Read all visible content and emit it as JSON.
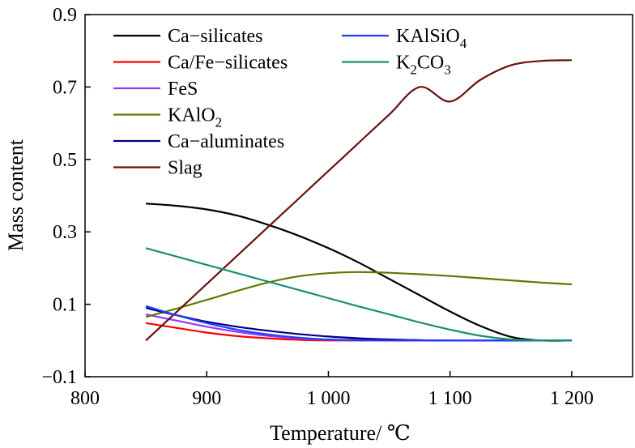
{
  "chart_data": {
    "type": "line",
    "xlabel": "Temperature/ ℃",
    "ylabel": "Mass content",
    "xlim": [
      800,
      1250
    ],
    "ylim": [
      -0.1,
      0.9
    ],
    "x_ticks": [
      {
        "value": 800,
        "label": "800"
      },
      {
        "value": 900,
        "label": "900"
      },
      {
        "value": 1000,
        "label": "1 000"
      },
      {
        "value": 1100,
        "label": "1 100"
      },
      {
        "value": 1200,
        "label": "1 200"
      }
    ],
    "y_ticks": [
      {
        "value": -0.1,
        "label": "−0.1"
      },
      {
        "value": 0.1,
        "label": "0.1"
      },
      {
        "value": 0.3,
        "label": "0.3"
      },
      {
        "value": 0.5,
        "label": "0.5"
      },
      {
        "value": 0.7,
        "label": "0.7"
      },
      {
        "value": 0.9,
        "label": "0.9"
      }
    ],
    "grid": false,
    "legend_position": "top-left, two columns",
    "series": [
      {
        "name": "Ca−silicates",
        "name_sub": "",
        "color": "#000000",
        "x": [
          850,
          875,
          900,
          925,
          950,
          975,
          1000,
          1025,
          1050,
          1075,
          1100,
          1125,
          1150,
          1175,
          1200
        ],
        "y": [
          0.378,
          0.372,
          0.362,
          0.345,
          0.32,
          0.29,
          0.255,
          0.215,
          0.17,
          0.125,
          0.08,
          0.04,
          0.01,
          0.0,
          0.0
        ]
      },
      {
        "name": "Ca/Fe−silicates",
        "name_sub": "",
        "color": "#ff0000",
        "x": [
          850,
          875,
          900,
          925,
          950,
          975,
          1000,
          1050,
          1100,
          1150,
          1200
        ],
        "y": [
          0.048,
          0.035,
          0.022,
          0.012,
          0.006,
          0.002,
          0.0,
          0.0,
          0.0,
          0.0,
          0.0
        ]
      },
      {
        "name": "FeS",
        "name_sub": "",
        "color": "#9933ff",
        "x": [
          850,
          875,
          900,
          925,
          950,
          975,
          1000,
          1050,
          1100,
          1150,
          1200
        ],
        "y": [
          0.072,
          0.055,
          0.038,
          0.024,
          0.013,
          0.006,
          0.002,
          0.0,
          0.0,
          0.0,
          0.0
        ]
      },
      {
        "name": "KAlO",
        "name_sub": "2",
        "color": "#5c7a00",
        "x": [
          850,
          875,
          900,
          925,
          950,
          975,
          1000,
          1025,
          1050,
          1075,
          1100,
          1125,
          1150,
          1175,
          1200
        ],
        "y": [
          0.065,
          0.088,
          0.112,
          0.137,
          0.16,
          0.177,
          0.186,
          0.189,
          0.187,
          0.183,
          0.178,
          0.172,
          0.166,
          0.16,
          0.155
        ]
      },
      {
        "name": "Ca−aluminates",
        "name_sub": "",
        "color": "#000080",
        "x": [
          850,
          875,
          900,
          925,
          950,
          975,
          1000,
          1025,
          1050,
          1075,
          1100,
          1150,
          1200
        ],
        "y": [
          0.09,
          0.07,
          0.052,
          0.038,
          0.027,
          0.018,
          0.011,
          0.006,
          0.003,
          0.001,
          0.0,
          0.0,
          0.0
        ]
      },
      {
        "name": "Slag",
        "name_sub": "",
        "color": "#6b0f0f",
        "x": [
          850,
          875,
          900,
          925,
          950,
          975,
          1000,
          1025,
          1050,
          1075,
          1100,
          1125,
          1150,
          1175,
          1200
        ],
        "y": [
          0.0,
          0.078,
          0.156,
          0.234,
          0.312,
          0.39,
          0.468,
          0.546,
          0.624,
          0.7,
          0.66,
          0.72,
          0.76,
          0.772,
          0.774
        ]
      },
      {
        "name": "KAlSiO",
        "name_sub": "4",
        "color": "#1f3fff",
        "x": [
          850,
          875,
          900,
          925,
          950,
          975,
          1000,
          1025,
          1050,
          1100,
          1150,
          1200
        ],
        "y": [
          0.095,
          0.07,
          0.048,
          0.03,
          0.017,
          0.008,
          0.003,
          0.001,
          0.0,
          0.0,
          0.0,
          0.0
        ]
      },
      {
        "name": "K",
        "name_sub": "2",
        "name_tail": "CO",
        "name_sub2": "3",
        "color": "#1a8f70",
        "x": [
          850,
          875,
          900,
          925,
          950,
          975,
          1000,
          1025,
          1050,
          1075,
          1100,
          1125,
          1150,
          1175,
          1200
        ],
        "y": [
          0.255,
          0.232,
          0.209,
          0.186,
          0.163,
          0.14,
          0.117,
          0.094,
          0.072,
          0.05,
          0.03,
          0.013,
          0.003,
          0.0,
          0.0
        ]
      }
    ]
  }
}
